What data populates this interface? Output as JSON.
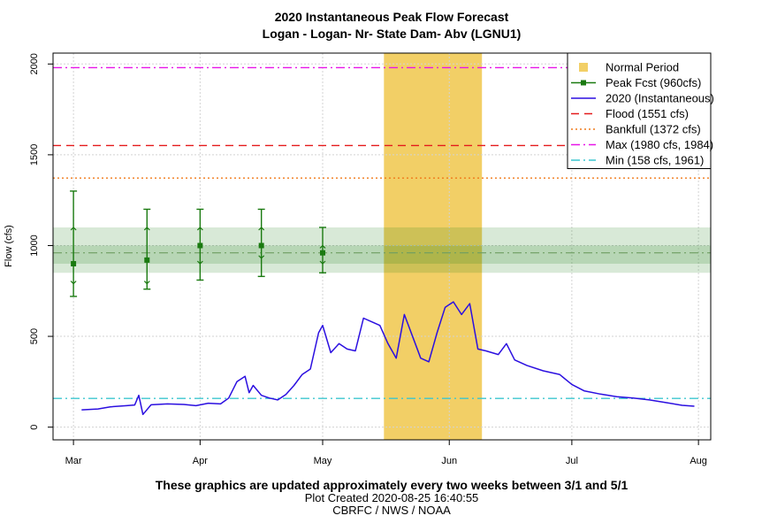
{
  "chart_data": {
    "type": "line",
    "title": "2020 Instantaneous Peak Flow Forecast",
    "subtitle": "Logan - Logan- Nr- State Dam- Abv (LGNU1)",
    "ylabel": "Flow (cfs)",
    "xlabel": "",
    "ylim": [
      -70,
      2060
    ],
    "xlim": [
      "2020-02-25",
      "2020-08-04"
    ],
    "y_ticks": [
      0,
      500,
      1000,
      1500,
      2000
    ],
    "x_ticks": [
      {
        "label": "Mar",
        "date": "2020-03-01"
      },
      {
        "label": "Apr",
        "date": "2020-04-01"
      },
      {
        "label": "May",
        "date": "2020-05-01"
      },
      {
        "label": "Jun",
        "date": "2020-06-01"
      },
      {
        "label": "Jul",
        "date": "2020-07-01"
      },
      {
        "label": "Aug",
        "date": "2020-08-01"
      }
    ],
    "grid": true,
    "legend_position": "top-right",
    "legend": [
      {
        "label": "Normal Period",
        "color": "#f2cf66",
        "kind": "square"
      },
      {
        "label": "Peak Fcst (960cfs)",
        "color": "#1a7a10",
        "kind": "line-square"
      },
      {
        "label": "2020  (Instantaneous)",
        "color": "#2b0fe0",
        "kind": "line"
      },
      {
        "label": "Flood (1551 cfs)",
        "color": "#e41a1c",
        "kind": "dashed"
      },
      {
        "label": "Bankfull (1372 cfs)",
        "color": "#f07a1a",
        "kind": "dotted"
      },
      {
        "label": "Max (1980 cfs, 1984)",
        "color": "#e815e8",
        "kind": "dashdot"
      },
      {
        "label": "Min (158 cfs, 1961)",
        "color": "#3cc6cf",
        "kind": "dashdot"
      }
    ],
    "reference_lines": [
      {
        "name": "Flood (1551 cfs)",
        "value": 1551,
        "color": "#e41a1c",
        "style": "dashed"
      },
      {
        "name": "Bankfull (1372 cfs)",
        "value": 1372,
        "color": "#f07a1a",
        "style": "dotted"
      },
      {
        "name": "Max (1980 cfs, 1984)",
        "value": 1980,
        "color": "#e815e8",
        "style": "dashdot"
      },
      {
        "name": "Min (158 cfs, 1961)",
        "value": 158,
        "color": "#3cc6cf",
        "style": "dashdot"
      }
    ],
    "normal_period": {
      "start": "2020-05-16",
      "end": "2020-06-09",
      "color": "#f2cf66"
    },
    "forecast_band": {
      "center": 960,
      "outer": [
        850,
        1100
      ],
      "inner": [
        900,
        1000
      ],
      "color": "#1a7a10"
    },
    "peak_forecasts": [
      {
        "date": "2020-03-01",
        "value": 900,
        "p10": 790,
        "p90": 1100,
        "low": 720,
        "high": 1300
      },
      {
        "date": "2020-03-19",
        "value": 920,
        "p10": 790,
        "p90": 1100,
        "low": 760,
        "high": 1200
      },
      {
        "date": "2020-04-01",
        "value": 1000,
        "p10": 900,
        "p90": 1100,
        "low": 810,
        "high": 1200
      },
      {
        "date": "2020-04-16",
        "value": 1000,
        "p10": 930,
        "p90": 1100,
        "low": 830,
        "high": 1200
      },
      {
        "date": "2020-05-01",
        "value": 960,
        "p10": 900,
        "p90": 1000,
        "low": 850,
        "high": 1100
      }
    ],
    "series": [
      {
        "name": "2020  (Instantaneous)",
        "color": "#2b0fe0",
        "x": [
          "2020-03-03",
          "2020-03-07",
          "2020-03-10",
          "2020-03-14",
          "2020-03-16",
          "2020-03-17",
          "2020-03-18",
          "2020-03-20",
          "2020-03-24",
          "2020-03-28",
          "2020-03-31",
          "2020-04-03",
          "2020-04-06",
          "2020-04-08",
          "2020-04-10",
          "2020-04-12",
          "2020-04-13",
          "2020-04-14",
          "2020-04-16",
          "2020-04-18",
          "2020-04-20",
          "2020-04-22",
          "2020-04-24",
          "2020-04-26",
          "2020-04-28",
          "2020-04-30",
          "2020-05-01",
          "2020-05-03",
          "2020-05-05",
          "2020-05-07",
          "2020-05-09",
          "2020-05-11",
          "2020-05-13",
          "2020-05-15",
          "2020-05-17",
          "2020-05-19",
          "2020-05-21",
          "2020-05-23",
          "2020-05-25",
          "2020-05-27",
          "2020-05-29",
          "2020-05-31",
          "2020-06-02",
          "2020-06-04",
          "2020-06-06",
          "2020-06-08",
          "2020-06-10",
          "2020-06-13",
          "2020-06-15",
          "2020-06-17",
          "2020-06-20",
          "2020-06-24",
          "2020-06-28",
          "2020-07-01",
          "2020-07-04",
          "2020-07-08",
          "2020-07-12",
          "2020-07-16",
          "2020-07-20",
          "2020-07-24",
          "2020-07-28",
          "2020-07-31"
        ],
        "y": [
          95,
          100,
          112,
          118,
          122,
          175,
          70,
          123,
          128,
          125,
          118,
          132,
          128,
          160,
          250,
          280,
          190,
          230,
          175,
          160,
          150,
          180,
          230,
          290,
          320,
          520,
          560,
          410,
          460,
          430,
          420,
          600,
          580,
          560,
          460,
          380,
          620,
          500,
          380,
          360,
          520,
          660,
          690,
          620,
          680,
          430,
          420,
          400,
          460,
          370,
          340,
          310,
          290,
          235,
          200,
          182,
          168,
          160,
          150,
          135,
          120,
          115
        ]
      }
    ]
  },
  "footer": {
    "line1": "These graphics are updated approximately every two weeks between 3/1 and 5/1",
    "line2": "Plot Created 2020-08-25 16:40:55",
    "line3": "CBRFC / NWS / NOAA"
  }
}
